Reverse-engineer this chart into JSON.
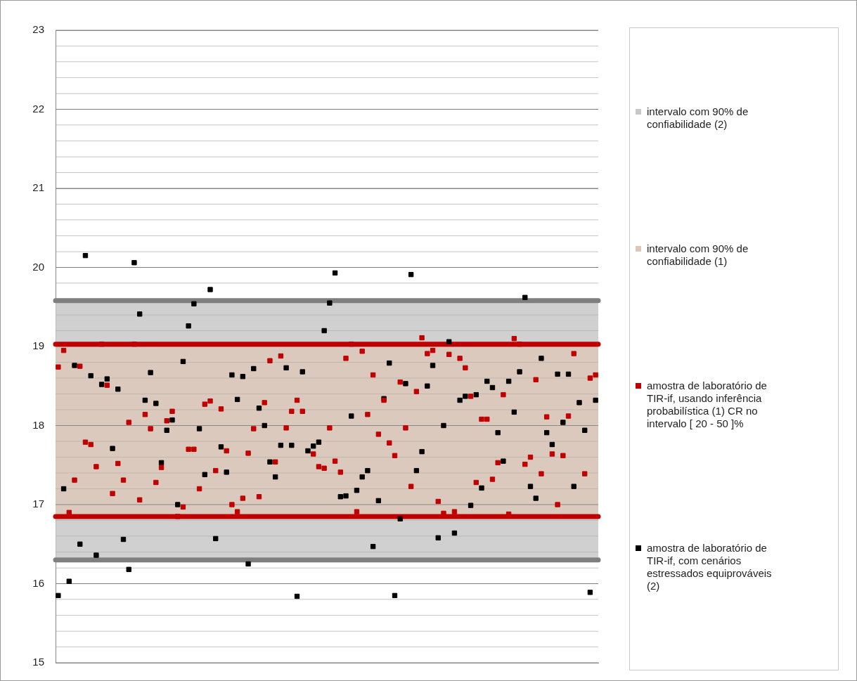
{
  "chart_data": {
    "type": "scatter",
    "categories": [
      null,
      null,
      null,
      null,
      null,
      null,
      null,
      null,
      null,
      null,
      null,
      null,
      null,
      null,
      null,
      null,
      null,
      null,
      null,
      null,
      null,
      null,
      null,
      null,
      null,
      null,
      null,
      null,
      null,
      null,
      null,
      null,
      null,
      null,
      null,
      null,
      null,
      null,
      null,
      null,
      null,
      null,
      null,
      null,
      null,
      null,
      null,
      null,
      null,
      null,
      null,
      null,
      null,
      null,
      null,
      null,
      null,
      null,
      null,
      null,
      null,
      null,
      null,
      null,
      null,
      null,
      null,
      null,
      null,
      null,
      null,
      null,
      null,
      null,
      null,
      null,
      null,
      null,
      null,
      null,
      null,
      null,
      null,
      null,
      null,
      null,
      null,
      null,
      null,
      null,
      null,
      null,
      null,
      null,
      null,
      null,
      null,
      null,
      null,
      null
    ],
    "series": [
      {
        "name": "amostra de laboratório de TIR-if, usando inferência probabilística (1) CR no intervalo [ 20 - 50 ]%",
        "color": "#c00000",
        "values": [
          18.74,
          18.95,
          16.9,
          17.31,
          18.75,
          17.79,
          17.76,
          17.48,
          19.03,
          18.51,
          17.14,
          17.52,
          17.31,
          18.04,
          19.03,
          17.06,
          18.14,
          17.96,
          17.28,
          17.47,
          18.06,
          18.18,
          16.85,
          16.97,
          17.7,
          17.7,
          17.2,
          18.27,
          18.31,
          17.43,
          18.21,
          17.68,
          17.0,
          16.91,
          17.08,
          17.65,
          17.96,
          17.1,
          18.29,
          18.82,
          17.54,
          18.88,
          17.97,
          18.18,
          18.32,
          18.18,
          null,
          17.64,
          17.48,
          17.46,
          17.97,
          17.55,
          17.41,
          18.85,
          19.03,
          16.91,
          18.94,
          18.14,
          18.64,
          17.89,
          18.32,
          17.78,
          17.62,
          18.55,
          17.97,
          17.23,
          18.43,
          19.11,
          18.91,
          18.95,
          17.04,
          16.89,
          18.9,
          16.91,
          18.85,
          18.73,
          18.37,
          17.28,
          18.08,
          18.08,
          17.32,
          17.53,
          18.39,
          16.88,
          19.1,
          19.03,
          17.51,
          17.6,
          18.58,
          17.39,
          18.11,
          17.64,
          17.0,
          17.62,
          18.12,
          18.91,
          null,
          17.39,
          18.6,
          18.64
        ]
      },
      {
        "name": "amostra de laboratório de TIR-if, com cenários estressados equiprováveis (2)",
        "color": "#000000",
        "values": [
          15.85,
          17.2,
          16.03,
          18.76,
          16.5,
          20.15,
          18.63,
          16.36,
          18.52,
          18.59,
          17.71,
          18.46,
          16.56,
          16.18,
          20.06,
          19.41,
          18.32,
          18.67,
          18.28,
          17.53,
          17.94,
          18.07,
          17.0,
          18.81,
          19.26,
          19.54,
          17.96,
          17.38,
          19.72,
          16.57,
          17.73,
          17.41,
          18.64,
          18.33,
          18.62,
          16.25,
          18.72,
          18.22,
          18.0,
          17.54,
          17.35,
          17.75,
          18.73,
          17.75,
          15.84,
          18.68,
          17.68,
          17.74,
          17.79,
          19.2,
          19.55,
          19.93,
          17.1,
          17.11,
          18.12,
          17.18,
          17.35,
          17.43,
          16.47,
          17.05,
          18.34,
          18.79,
          15.85,
          16.82,
          18.53,
          19.91,
          17.43,
          17.67,
          18.5,
          18.76,
          16.58,
          18.0,
          19.06,
          16.64,
          18.32,
          18.37,
          16.99,
          18.39,
          17.21,
          18.56,
          18.48,
          17.91,
          17.55,
          18.56,
          18.17,
          18.68,
          19.62,
          17.23,
          17.08,
          18.85,
          17.91,
          17.76,
          18.65,
          18.04,
          18.65,
          17.23,
          18.29,
          17.94,
          15.89,
          18.32
        ]
      }
    ],
    "bands": [
      {
        "axis": "y",
        "from": 16.3,
        "to": 19.58,
        "label": "intervalo com 90% de confiabilidade (2)",
        "color": "#c8c8c8"
      },
      {
        "axis": "y",
        "from": 16.85,
        "to": 19.03,
        "label": "intervalo com 90% de confiabilidade (1)",
        "color": "#dcc8b8"
      }
    ],
    "ref_lines": [
      {
        "axis": "y",
        "value": 16.3,
        "color": "#7f7f7f"
      },
      {
        "axis": "y",
        "value": 19.58,
        "color": "#7f7f7f"
      },
      {
        "axis": "y",
        "value": 16.85,
        "color": "#c00000"
      },
      {
        "axis": "y",
        "value": 19.03,
        "color": "#c00000"
      }
    ],
    "ylim": [
      15,
      23
    ],
    "yticks": [
      15,
      {
        "value": 15.2,
        "label": null
      },
      {
        "value": 15.4,
        "label": null
      },
      {
        "value": 15.6,
        "label": null
      },
      {
        "value": 15.8,
        "label": null
      },
      16,
      {
        "value": 16.2,
        "label": null
      },
      {
        "value": 16.4,
        "label": null
      },
      {
        "value": 16.6,
        "label": null
      },
      {
        "value": 16.8,
        "label": null
      },
      17,
      {
        "value": 17.2,
        "label": null
      },
      {
        "value": 17.4,
        "label": null
      },
      {
        "value": 17.6,
        "label": null
      },
      {
        "value": 17.8,
        "label": null
      },
      18,
      {
        "value": 18.2,
        "label": null
      },
      {
        "value": 18.4,
        "label": null
      },
      {
        "value": 18.6,
        "label": null
      },
      {
        "value": 18.8,
        "label": null
      },
      19,
      {
        "value": 19.2,
        "label": null
      },
      {
        "value": 19.4,
        "label": null
      },
      {
        "value": 19.6,
        "label": null
      },
      {
        "value": 19.8,
        "label": null
      },
      20,
      {
        "value": 20.2,
        "label": null
      },
      {
        "value": 20.4,
        "label": null
      },
      {
        "value": 20.6,
        "label": null
      },
      {
        "value": 20.8,
        "label": null
      },
      21,
      {
        "value": 21.2,
        "label": null
      },
      {
        "value": 21.4,
        "label": null
      },
      {
        "value": 21.6,
        "label": null
      },
      {
        "value": 21.8,
        "label": null
      },
      22,
      {
        "value": 22.2,
        "label": null
      },
      {
        "value": 22.4,
        "label": null
      },
      {
        "value": 22.6,
        "label": null
      },
      {
        "value": 22.8,
        "label": null
      },
      23
    ],
    "grid": "y",
    "tick_labels": "y",
    "legend": "right",
    "marker": "square"
  }
}
